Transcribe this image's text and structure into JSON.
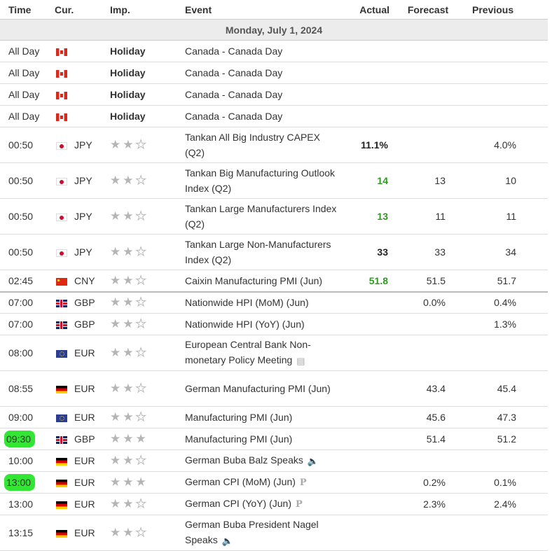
{
  "headers": {
    "time": "Time",
    "cur": "Cur.",
    "imp": "Imp.",
    "event": "Event",
    "actual": "Actual",
    "forecast": "Forecast",
    "previous": "Previous"
  },
  "day_label": "Monday, July 1, 2024",
  "holiday_label": "Holiday",
  "colors": {
    "good": "#2a9c1c",
    "highlight": "#33e633"
  },
  "rows": [
    {
      "time": "All Day",
      "flag": "ca",
      "cur": "",
      "imp": "holiday",
      "event": "Canada - Canada Day",
      "actual": "",
      "forecast": "",
      "previous": ""
    },
    {
      "time": "All Day",
      "flag": "ca",
      "cur": "",
      "imp": "holiday",
      "event": "Canada - Canada Day",
      "actual": "",
      "forecast": "",
      "previous": ""
    },
    {
      "time": "All Day",
      "flag": "ca",
      "cur": "",
      "imp": "holiday",
      "event": "Canada - Canada Day",
      "actual": "",
      "forecast": "",
      "previous": ""
    },
    {
      "time": "All Day",
      "flag": "ca",
      "cur": "",
      "imp": "holiday",
      "event": "Canada - Canada Day",
      "actual": "",
      "forecast": "",
      "previous": ""
    },
    {
      "time": "00:50",
      "flag": "jp",
      "cur": "JPY",
      "imp": 2,
      "event": "Tankan All Big Industry CAPEX (Q2)",
      "actual": "11.1%",
      "forecast": "",
      "previous": "4.0%"
    },
    {
      "time": "00:50",
      "flag": "jp",
      "cur": "JPY",
      "imp": 2,
      "event": "Tankan Big Manufacturing Outlook Index (Q2)",
      "actual": "14",
      "actual_good": true,
      "forecast": "13",
      "previous": "10"
    },
    {
      "time": "00:50",
      "flag": "jp",
      "cur": "JPY",
      "imp": 2,
      "event": "Tankan Large Manufacturers Index (Q2)",
      "actual": "13",
      "actual_good": true,
      "forecast": "11",
      "previous": "11"
    },
    {
      "time": "00:50",
      "flag": "jp",
      "cur": "JPY",
      "imp": 2,
      "event": "Tankan Large Non-Manufacturers Index (Q2)",
      "actual": "33",
      "forecast": "33",
      "previous": "34"
    },
    {
      "time": "02:45",
      "flag": "cn",
      "cur": "CNY",
      "imp": 2,
      "event": "Caixin Manufacturing PMI (Jun)",
      "actual": "51.8",
      "actual_good": true,
      "forecast": "51.5",
      "previous": "51.7"
    },
    {
      "time": "07:00",
      "flag": "gb",
      "cur": "GBP",
      "imp": 2,
      "event": "Nationwide HPI (MoM) (Jun)",
      "actual": "",
      "forecast": "0.0%",
      "previous": "0.4%"
    },
    {
      "time": "07:00",
      "flag": "gb",
      "cur": "GBP",
      "imp": 2,
      "event": "Nationwide HPI (YoY) (Jun)",
      "actual": "",
      "forecast": "",
      "previous": "1.3%"
    },
    {
      "time": "08:00",
      "flag": "eu",
      "cur": "EUR",
      "imp": 2,
      "event": "European Central Bank Non-monetary Policy Meeting",
      "icon": "document-icon",
      "actual": "",
      "forecast": "",
      "previous": ""
    },
    {
      "time": "08:55",
      "flag": "de",
      "cur": "EUR",
      "imp": 2,
      "event": "German Manufacturing PMI (Jun)",
      "actual": "",
      "forecast": "43.4",
      "previous": "45.4"
    },
    {
      "time": "09:00",
      "flag": "eu",
      "cur": "EUR",
      "imp": 2,
      "event": "Manufacturing PMI (Jun)",
      "actual": "",
      "forecast": "45.6",
      "previous": "47.3"
    },
    {
      "time": "09:30",
      "flag": "gb",
      "cur": "GBP",
      "imp": 3,
      "event": "Manufacturing PMI (Jun)",
      "actual": "",
      "forecast": "51.4",
      "previous": "51.2",
      "highlight": true
    },
    {
      "time": "10:00",
      "flag": "de",
      "cur": "EUR",
      "imp": 2,
      "event": "German Buba Balz Speaks",
      "icon": "speaker-icon",
      "actual": "",
      "forecast": "",
      "previous": ""
    },
    {
      "time": "13:00",
      "flag": "de",
      "cur": "EUR",
      "imp": 3,
      "event": "German CPI (MoM) (Jun)",
      "icon": "preliminary-icon",
      "actual": "",
      "forecast": "0.2%",
      "previous": "0.1%",
      "highlight": true
    },
    {
      "time": "13:00",
      "flag": "de",
      "cur": "EUR",
      "imp": 2,
      "event": "German CPI (YoY) (Jun)",
      "icon": "preliminary-icon",
      "actual": "",
      "forecast": "2.3%",
      "previous": "2.4%"
    },
    {
      "time": "13:15",
      "flag": "de",
      "cur": "EUR",
      "imp": 2,
      "event": "German Buba President Nagel Speaks",
      "icon": "speaker-icon",
      "actual": "",
      "forecast": "",
      "previous": ""
    }
  ]
}
